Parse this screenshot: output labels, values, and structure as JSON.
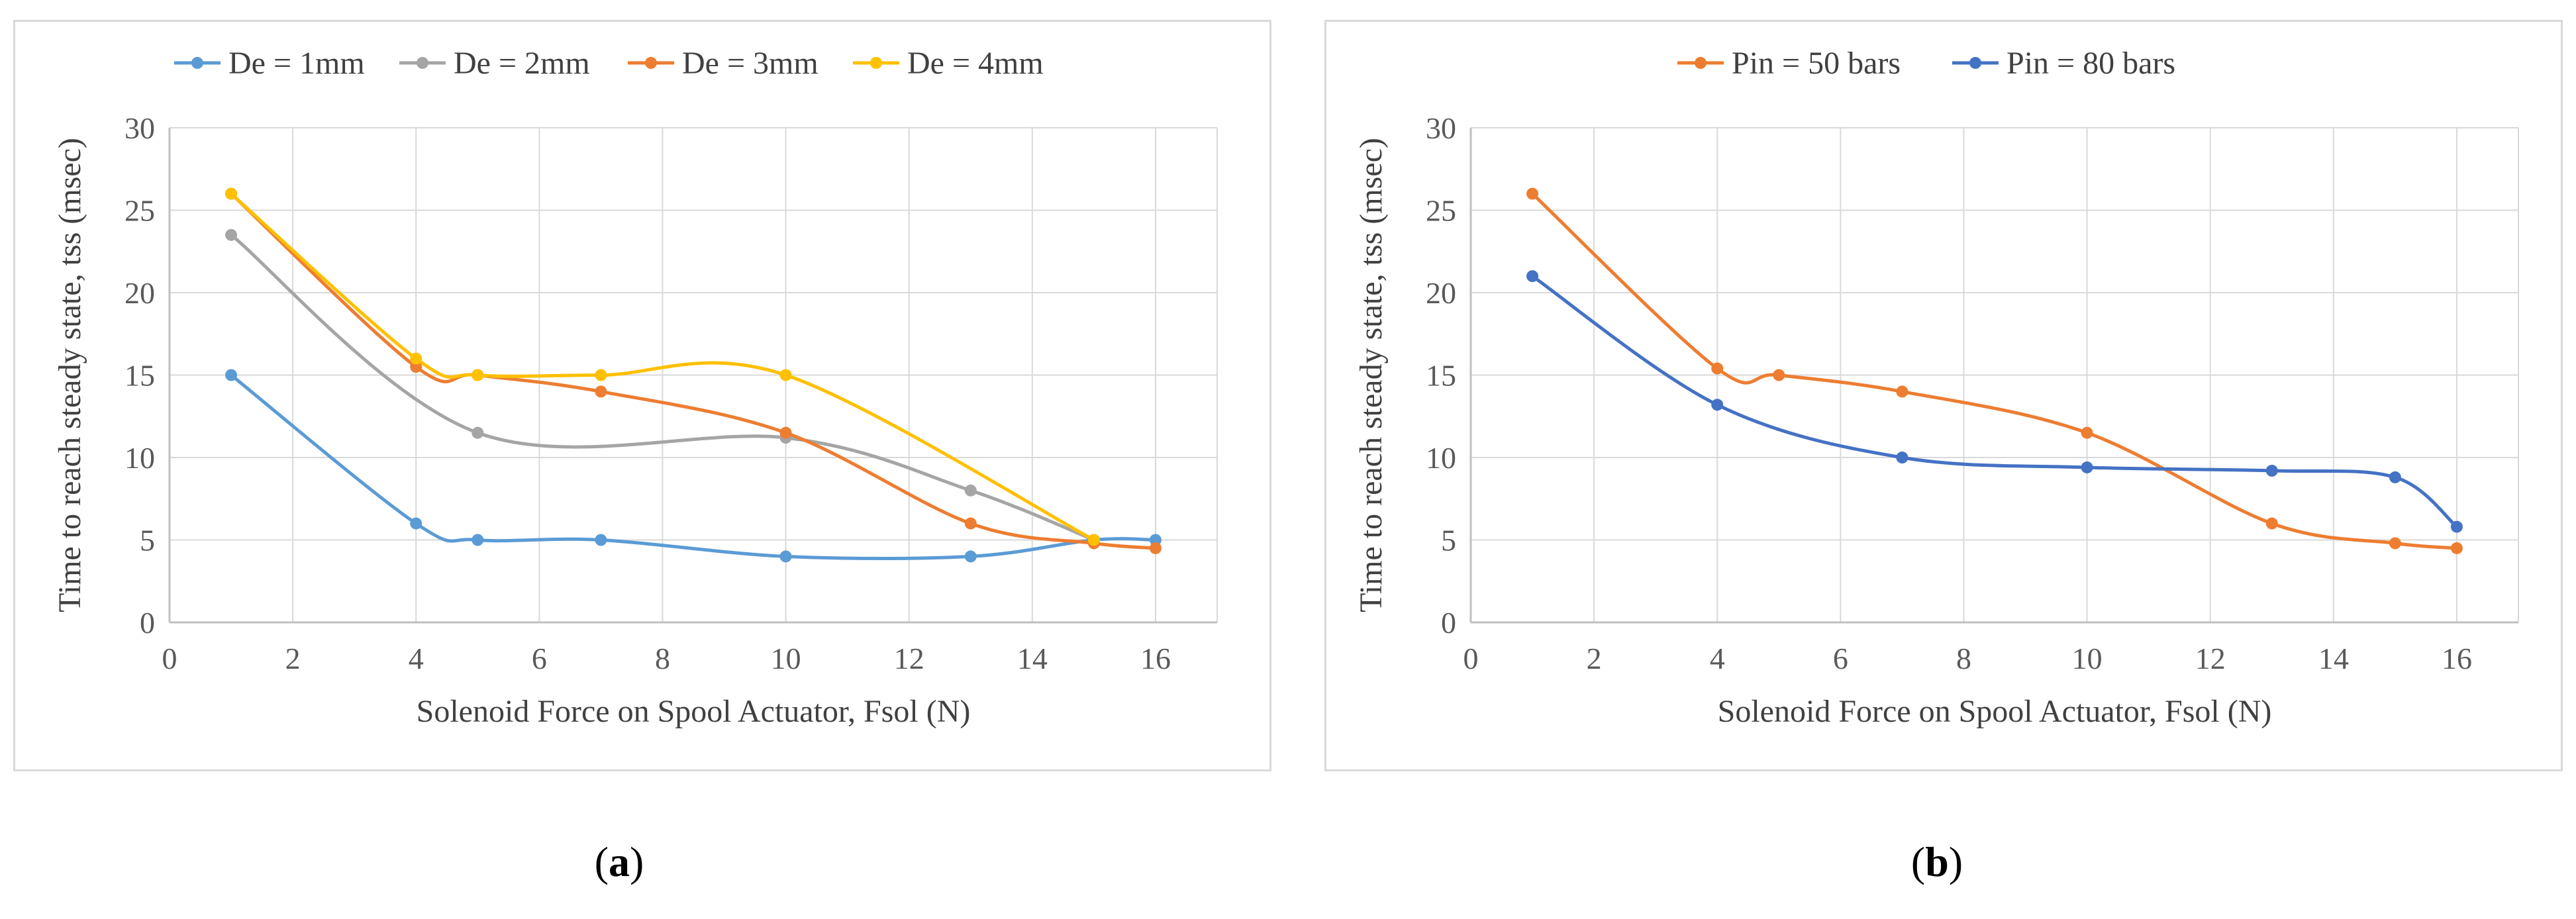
{
  "chart_data": [
    {
      "id": "a",
      "type": "line",
      "caption_open": "(",
      "caption_letter": "a",
      "caption_close": ")",
      "xlabel": "Solenoid Force on Spool Actuator, Fsol (N)",
      "ylabel": "Time to reach steady state, tss (msec)",
      "xlim": [
        0,
        17
      ],
      "ylim": [
        0,
        30
      ],
      "xticks": [
        0,
        2,
        4,
        6,
        8,
        10,
        12,
        14,
        16
      ],
      "yticks": [
        0,
        5,
        10,
        15,
        20,
        25,
        30
      ],
      "grid": true,
      "legend_position": "top",
      "series": [
        {
          "name": "De = 1mm",
          "color": "#5b9bd5",
          "x": [
            1,
            4,
            5,
            7,
            10,
            13,
            15,
            16
          ],
          "y": [
            15,
            6,
            5,
            5,
            4,
            4,
            5,
            5
          ]
        },
        {
          "name": "De = 2mm",
          "color": "#a5a5a5",
          "x": [
            1,
            5,
            10,
            13,
            15
          ],
          "y": [
            23.5,
            11.5,
            11.2,
            8,
            5
          ]
        },
        {
          "name": "De = 3mm",
          "color": "#ed7d31",
          "x": [
            1,
            4,
            5,
            7,
            10,
            13,
            15,
            16
          ],
          "y": [
            26,
            15.5,
            15,
            14,
            11.5,
            6,
            4.8,
            4.5
          ]
        },
        {
          "name": "De = 4mm",
          "color": "#ffc000",
          "x": [
            1,
            4,
            5,
            7,
            10,
            15
          ],
          "y": [
            26,
            16,
            15,
            15,
            15,
            5
          ]
        }
      ]
    },
    {
      "id": "b",
      "type": "line",
      "caption_open": "(",
      "caption_letter": "b",
      "caption_close": ")",
      "xlabel": "Solenoid Force on Spool Actuator, Fsol (N)",
      "ylabel": "Time to reach steady state, tss (msec)",
      "xlim": [
        0,
        17
      ],
      "ylim": [
        0,
        30
      ],
      "xticks": [
        0,
        2,
        4,
        6,
        8,
        10,
        12,
        14,
        16
      ],
      "yticks": [
        0,
        5,
        10,
        15,
        20,
        25,
        30
      ],
      "grid": true,
      "legend_position": "top",
      "series": [
        {
          "name": "Pin = 50 bars",
          "color": "#ed7d31",
          "x": [
            1,
            4,
            5,
            7,
            10,
            13,
            15,
            16
          ],
          "y": [
            26,
            15.4,
            15,
            14,
            11.5,
            6,
            4.8,
            4.5
          ]
        },
        {
          "name": "Pin = 80 bars",
          "color": "#4472c4",
          "x": [
            1,
            4,
            7,
            10,
            13,
            15,
            16
          ],
          "y": [
            21,
            13.2,
            10,
            9.4,
            9.2,
            8.8,
            5.8
          ]
        }
      ]
    }
  ]
}
